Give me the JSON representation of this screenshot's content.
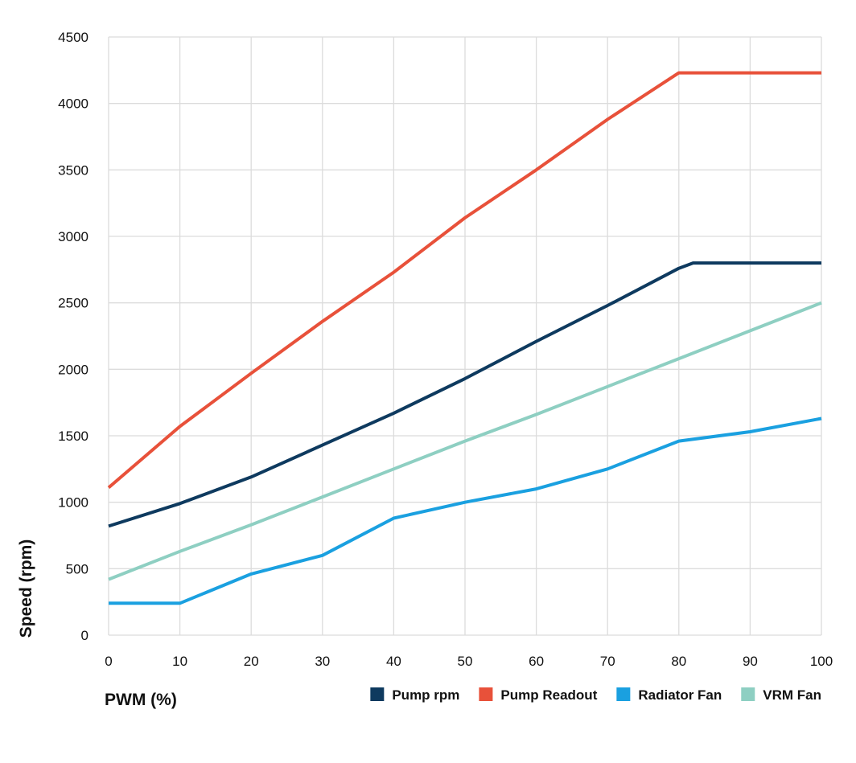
{
  "chart_data": {
    "type": "line",
    "xlabel": "PWM (%)",
    "ylabel": "Speed (rpm)",
    "xlim": [
      0,
      100
    ],
    "ylim": [
      0,
      4500
    ],
    "x_ticks": [
      "0",
      "10",
      "20",
      "30",
      "40",
      "50",
      "60",
      "70",
      "80",
      "90",
      "100"
    ],
    "y_ticks": [
      "0",
      "500",
      "1000",
      "1500",
      "2000",
      "2500",
      "3000",
      "3500",
      "4000",
      "4500"
    ],
    "grid": true,
    "legend_position": "bottom-right",
    "series": [
      {
        "name": "Pump rpm",
        "color": "#0e3a5f",
        "x": [
          0,
          10,
          20,
          30,
          40,
          50,
          60,
          70,
          80,
          82,
          100
        ],
        "y": [
          820,
          990,
          1190,
          1430,
          1670,
          1930,
          2210,
          2480,
          2760,
          2800,
          2800
        ]
      },
      {
        "name": "Pump Readout",
        "color": "#e8513a",
        "x": [
          0,
          10,
          20,
          30,
          40,
          50,
          60,
          70,
          80,
          90,
          100
        ],
        "y": [
          1110,
          1570,
          1970,
          2360,
          2730,
          3140,
          3500,
          3880,
          4230,
          4230,
          4230
        ]
      },
      {
        "name": "Radiator Fan",
        "color": "#1aa0e0",
        "x": [
          0,
          10,
          20,
          30,
          40,
          50,
          60,
          70,
          80,
          90,
          100
        ],
        "y": [
          240,
          240,
          460,
          600,
          880,
          1000,
          1100,
          1250,
          1460,
          1530,
          1630
        ]
      },
      {
        "name": "VRM Fan",
        "color": "#8ecfc2",
        "x": [
          0,
          10,
          20,
          30,
          40,
          50,
          60,
          70,
          80,
          90,
          100
        ],
        "y": [
          420,
          630,
          830,
          1040,
          1250,
          1460,
          1660,
          1870,
          2080,
          2290,
          2500
        ]
      }
    ]
  }
}
